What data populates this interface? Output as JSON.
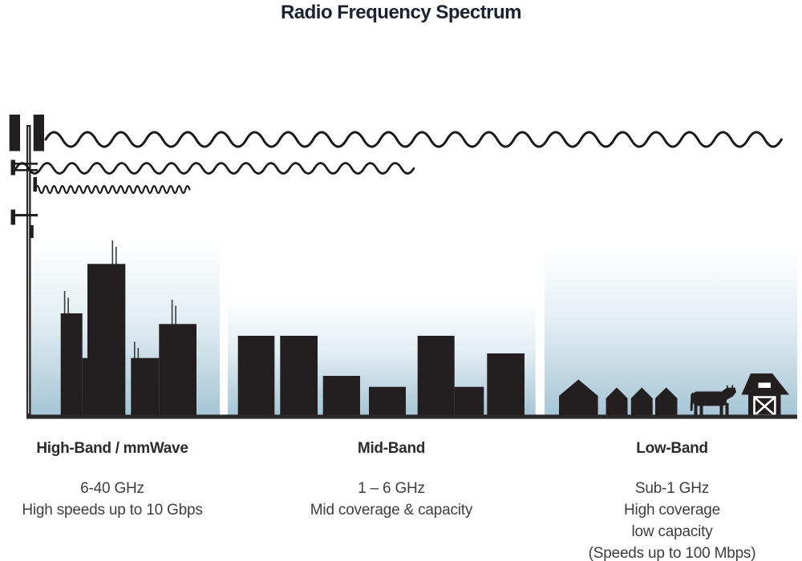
{
  "title": "Radio Frequency Spectrum",
  "bands": [
    {
      "id": "high-band",
      "heading": "High-Band / mmWave",
      "lines": [
        "6-40 GHz",
        "High speeds up to 10 Gbps"
      ],
      "scene": "city skyline with rooftop antennas",
      "wave": "short wavelength"
    },
    {
      "id": "mid-band",
      "heading": "Mid-Band",
      "lines": [
        "1 – 6 GHz",
        "Mid coverage & capacity"
      ],
      "scene": "suburban flat-roof buildings",
      "wave": "medium wavelength"
    },
    {
      "id": "low-band",
      "heading": "Low-Band",
      "lines": [
        "Sub-1 GHz",
        "High coverage",
        "low capacity",
        "(Speeds up to 100 Mbps)"
      ],
      "scene": "rural houses, cow and barn",
      "wave": "long wavelength"
    }
  ],
  "icons": {
    "tower": "cell-tower-icon",
    "long_wave": "long-wave-icon",
    "medium_wave": "medium-wave-icon",
    "short_wave": "short-wave-icon",
    "city": "skyscrapers-icon",
    "suburb": "flat-buildings-icon",
    "houses": "houses-icon",
    "cow": "cow-icon",
    "barn": "barn-icon"
  },
  "colors": {
    "ink": "#231f20",
    "antenna_gray": "#3a3a3a",
    "ground_line": "#2b2829",
    "wave_stroke": "#1a1a1a",
    "sky_top": "#ffffff",
    "sky_mid": "#e3eef3",
    "sky_bottom": "#a6c5d6",
    "title_text": "#1b2330",
    "heading_text": "#2b2b2b",
    "body_text": "#3d3d3d",
    "pole_highlight": "#d9d9d9"
  }
}
